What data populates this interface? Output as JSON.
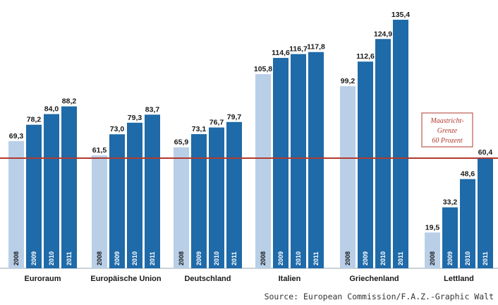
{
  "chart_data": {
    "type": "bar",
    "categories": [
      "Euroraum",
      "Europäische Union",
      "Deutschland",
      "Italien",
      "Griechenland",
      "Lettland"
    ],
    "series_years": [
      "2008",
      "2009",
      "2010",
      "2011"
    ],
    "values": [
      [
        69.3,
        78.2,
        84.0,
        88.2
      ],
      [
        61.5,
        73.0,
        79.3,
        83.7
      ],
      [
        65.9,
        73.1,
        76.7,
        79.7
      ],
      [
        105.8,
        114.6,
        116.7,
        117.8
      ],
      [
        99.2,
        112.6,
        124.9,
        135.4
      ],
      [
        19.5,
        33.2,
        48.6,
        60.4
      ]
    ],
    "value_labels": [
      [
        "69,3",
        "78,2",
        "84,0",
        "88,2"
      ],
      [
        "61,5",
        "73,0",
        "79,3",
        "83,7"
      ],
      [
        "65,9",
        "73,1",
        "76,7",
        "79,7"
      ],
      [
        "105,8",
        "114,6",
        "116,7",
        "117,8"
      ],
      [
        "99,2",
        "112,6",
        "124,9",
        "135,4"
      ],
      [
        "19,5",
        "33,2",
        "48,6",
        "60,4"
      ]
    ],
    "ylim": [
      0,
      140
    ],
    "reference_line": {
      "value": 60,
      "label_lines": [
        "Maastricht-",
        "Grenze",
        "60 Prozent"
      ]
    },
    "colors": {
      "first_year": "#b9cfe8",
      "other_years": "#1f6aa8",
      "reference": "#b23a2e"
    },
    "grid": false,
    "legend": "none",
    "source": "Source: European Commission/F.A.Z.-Graphic Walt"
  }
}
